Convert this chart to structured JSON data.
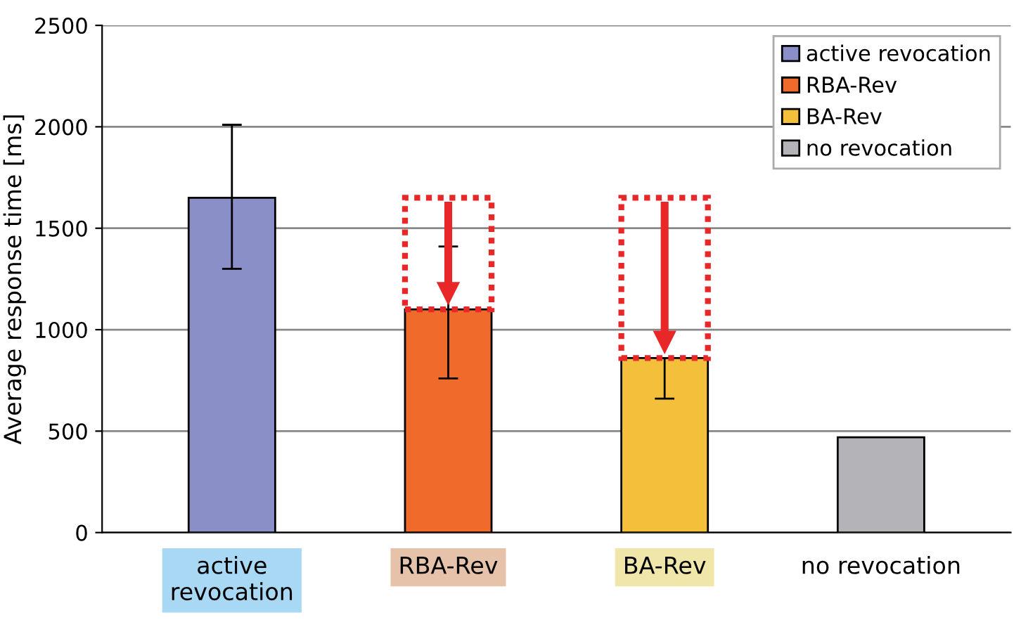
{
  "chart_data": {
    "type": "bar",
    "ylabel": "Average response time [ms]",
    "categories": [
      "active\nrevocation",
      "RBA-Rev",
      "BA-Rev",
      "no revocation"
    ],
    "series": [
      {
        "name": "active revocation",
        "color": "#8a8fc8",
        "values": [
          1650,
          null,
          null,
          null
        ],
        "errors": [
          [
            1300,
            2010
          ],
          null,
          null,
          null
        ]
      },
      {
        "name": "RBA-Rev",
        "color": "#f06a2c",
        "values": [
          null,
          1100,
          null,
          null
        ],
        "errors": [
          null,
          [
            760,
            1410
          ],
          null,
          null
        ]
      },
      {
        "name": "BA-Rev",
        "color": "#f4c03c",
        "values": [
          null,
          null,
          860,
          null
        ],
        "errors": [
          null,
          null,
          [
            660,
            860
          ],
          null
        ]
      },
      {
        "name": "no revocation",
        "color": "#b4b4b8",
        "values": [
          null,
          null,
          null,
          470
        ]
      }
    ],
    "ylim": [
      0,
      2500
    ],
    "yticks": [
      0,
      500,
      1000,
      1500,
      2000,
      2500
    ],
    "grid": "y",
    "legend": "top right"
  }
}
